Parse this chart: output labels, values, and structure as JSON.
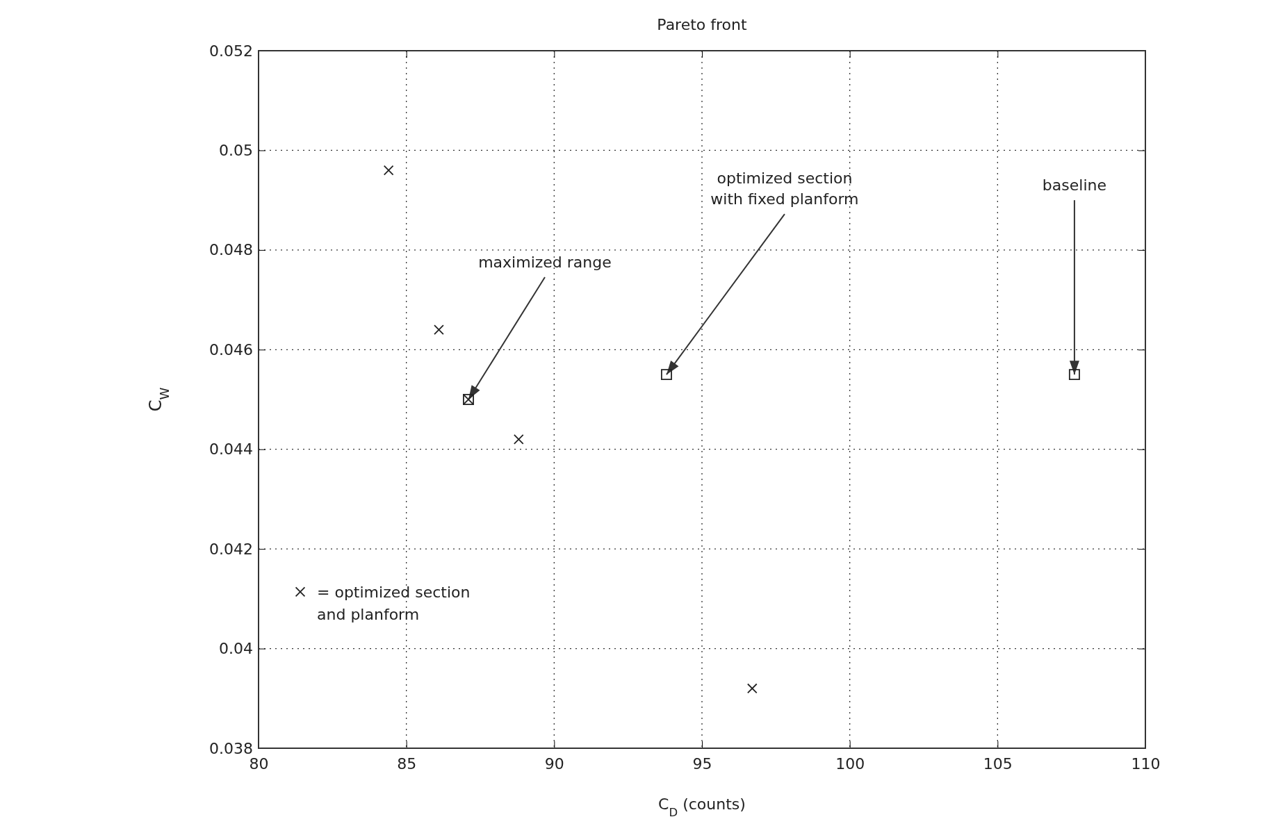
{
  "chart_data": {
    "type": "scatter",
    "title": "Pareto front",
    "xlabel": "C$_{D}$ (counts)",
    "ylabel": "C$_{W}$",
    "xlim": [
      80,
      110
    ],
    "xticks": [
      80,
      85,
      90,
      95,
      100,
      105,
      110
    ],
    "ylim": [
      0.038,
      0.052
    ],
    "yticks": [
      0.038,
      0.04,
      0.042,
      0.044,
      0.046,
      0.048,
      0.05,
      0.052
    ],
    "grid": true,
    "legend": "bottom left",
    "line_style": "dotted",
    "series": [
      {
        "name": "= optimized section and planform",
        "color": "#222222",
        "marker": "cross",
        "x": [
          84.4,
          86.1,
          87.1,
          88.8,
          96.7
        ],
        "values": [
          0.0496,
          0.0464,
          0.045,
          0.0442,
          0.0392
        ]
      },
      {
        "color": "#222222",
        "marker": "square",
        "x": [
          87.1,
          93.8,
          107.6
        ],
        "values": [
          0.045,
          0.0455,
          0.0455
        ]
      }
    ],
    "annotations": [
      {
        "text": "maximized range",
        "x": 87.1,
        "y": 0.045
      },
      {
        "text": "optimized section\nwith fixed planform",
        "x": 93.8,
        "y": 0.0455
      },
      {
        "text": "baseline",
        "x": 107.6,
        "y": 0.0455
      }
    ]
  }
}
